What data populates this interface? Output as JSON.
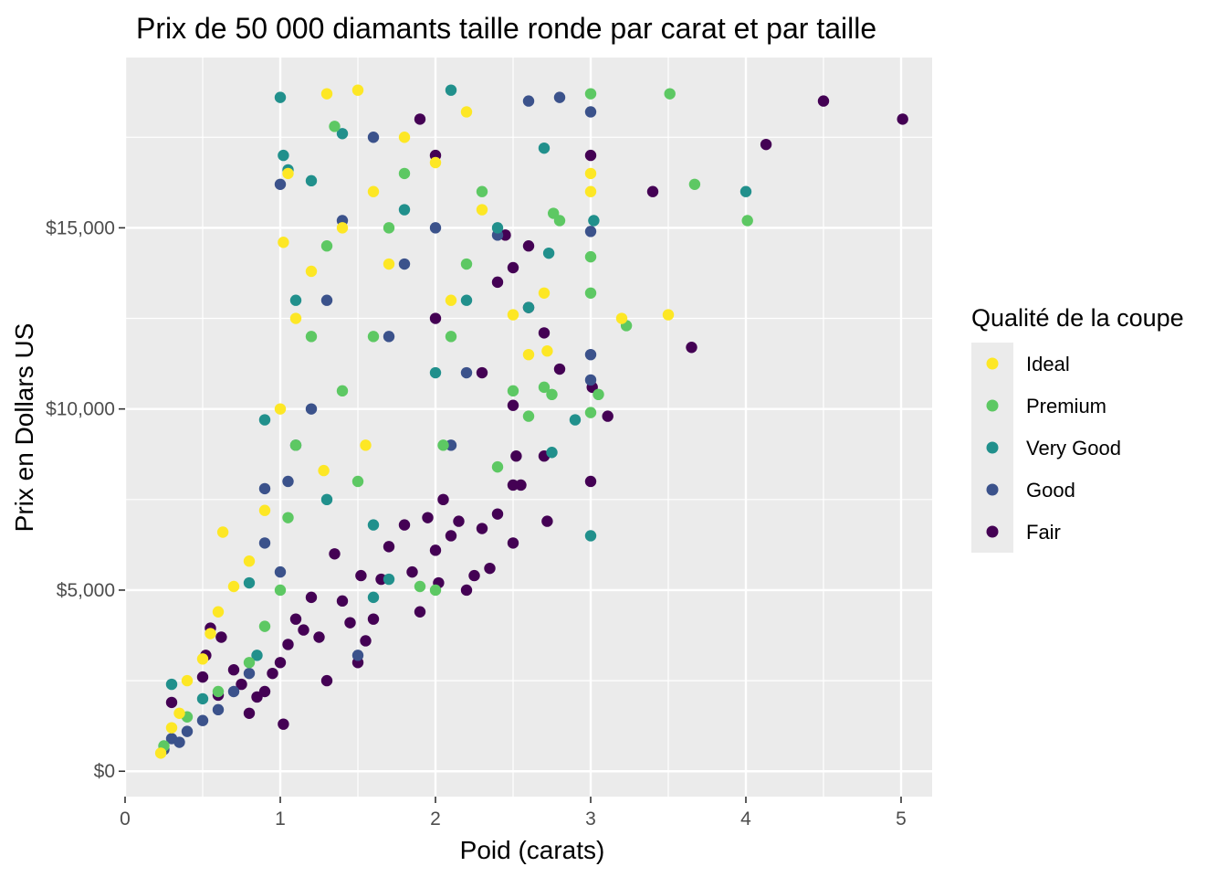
{
  "chart_data": {
    "type": "scatter",
    "title": "Prix de 50 000 diamants taille ronde par carat et par taille",
    "xlabel": "Poid (carats)",
    "ylabel": "Prix en Dollars US",
    "xlim": [
      0,
      5.2
    ],
    "ylim": [
      -700,
      19700
    ],
    "x_ticks": [
      0,
      1,
      2,
      3,
      4,
      5
    ],
    "x_tick_labels": [
      "0",
      "1",
      "2",
      "3",
      "4",
      "5"
    ],
    "y_ticks": [
      0,
      5000,
      10000,
      15000
    ],
    "y_tick_labels": [
      "$0",
      "$5,000",
      "$10,000",
      "$15,000"
    ],
    "grid": true,
    "legend": {
      "title": "Qualité de la coupe",
      "placement": "right",
      "entries": [
        "Ideal",
        "Premium",
        "Very Good",
        "Good",
        "Fair"
      ]
    },
    "colors": {
      "Ideal": "#FDE725",
      "Premium": "#5DC863",
      "Very Good": "#21908C",
      "Good": "#3B528B",
      "Fair": "#440154",
      "panel_background": "#EBEBEB",
      "grid_line": "#FFFFFF"
    },
    "series": [
      {
        "name": "Fair",
        "points": [
          [
            0.3,
            1900
          ],
          [
            0.5,
            2600
          ],
          [
            0.52,
            3200
          ],
          [
            0.55,
            3950
          ],
          [
            0.6,
            2100
          ],
          [
            0.62,
            3700
          ],
          [
            0.7,
            2800
          ],
          [
            0.75,
            2400
          ],
          [
            0.8,
            1600
          ],
          [
            0.85,
            2050
          ],
          [
            0.9,
            2200
          ],
          [
            0.95,
            2700
          ],
          [
            1.0,
            3000
          ],
          [
            1.02,
            1300
          ],
          [
            1.05,
            3500
          ],
          [
            1.1,
            4200
          ],
          [
            1.15,
            3900
          ],
          [
            1.2,
            4800
          ],
          [
            1.25,
            3700
          ],
          [
            1.3,
            2500
          ],
          [
            1.35,
            6000
          ],
          [
            1.4,
            4700
          ],
          [
            1.45,
            4100
          ],
          [
            1.5,
            3000
          ],
          [
            1.52,
            5400
          ],
          [
            1.55,
            3600
          ],
          [
            1.6,
            4200
          ],
          [
            1.65,
            5300
          ],
          [
            1.7,
            6200
          ],
          [
            1.8,
            6800
          ],
          [
            1.85,
            5500
          ],
          [
            1.9,
            4400
          ],
          [
            1.95,
            7000
          ],
          [
            2.0,
            6100
          ],
          [
            2.02,
            5200
          ],
          [
            2.05,
            7500
          ],
          [
            2.1,
            6500
          ],
          [
            2.15,
            6900
          ],
          [
            2.2,
            5000
          ],
          [
            2.25,
            5400
          ],
          [
            2.3,
            6700
          ],
          [
            2.35,
            5600
          ],
          [
            2.4,
            7100
          ],
          [
            2.5,
            6300
          ],
          [
            2.52,
            8700
          ],
          [
            2.55,
            7900
          ],
          [
            2.6,
            14500
          ],
          [
            2.7,
            8700
          ],
          [
            2.72,
            6900
          ],
          [
            1.9,
            18000
          ],
          [
            2.0,
            12500
          ],
          [
            2.3,
            11000
          ],
          [
            2.4,
            13500
          ],
          [
            2.45,
            14800
          ],
          [
            2.5,
            13900
          ],
          [
            2.6,
            12800
          ],
          [
            2.7,
            12100
          ],
          [
            2.8,
            11100
          ],
          [
            3.0,
            17000
          ],
          [
            3.0,
            8000
          ],
          [
            3.01,
            10600
          ],
          [
            3.11,
            9800
          ],
          [
            3.4,
            16000
          ],
          [
            3.65,
            11700
          ],
          [
            4.13,
            17300
          ],
          [
            4.5,
            18500
          ],
          [
            5.01,
            18000
          ],
          [
            2.0,
            17000
          ],
          [
            2.5,
            10100
          ],
          [
            2.5,
            7900
          ]
        ]
      },
      {
        "name": "Good",
        "points": [
          [
            0.25,
            600
          ],
          [
            0.3,
            900
          ],
          [
            0.35,
            800
          ],
          [
            0.4,
            1100
          ],
          [
            0.5,
            1400
          ],
          [
            0.6,
            1700
          ],
          [
            0.7,
            2200
          ],
          [
            0.8,
            2700
          ],
          [
            0.9,
            6300
          ],
          [
            0.9,
            7800
          ],
          [
            1.0,
            5500
          ],
          [
            1.0,
            16200
          ],
          [
            1.05,
            8000
          ],
          [
            1.1,
            9000
          ],
          [
            1.2,
            10000
          ],
          [
            1.3,
            13000
          ],
          [
            1.4,
            15200
          ],
          [
            1.5,
            3200
          ],
          [
            1.6,
            17500
          ],
          [
            1.7,
            12000
          ],
          [
            1.8,
            14000
          ],
          [
            2.0,
            15000
          ],
          [
            2.1,
            9000
          ],
          [
            2.2,
            11000
          ],
          [
            2.4,
            14800
          ],
          [
            2.6,
            18500
          ],
          [
            2.8,
            18600
          ],
          [
            3.0,
            18200
          ],
          [
            3.0,
            14900
          ],
          [
            3.0,
            11500
          ],
          [
            3.0,
            10800
          ]
        ]
      },
      {
        "name": "Very Good",
        "points": [
          [
            0.3,
            2400
          ],
          [
            0.5,
            2000
          ],
          [
            0.8,
            5200
          ],
          [
            0.85,
            3200
          ],
          [
            0.9,
            9700
          ],
          [
            1.0,
            18600
          ],
          [
            1.02,
            17000
          ],
          [
            1.05,
            16600
          ],
          [
            1.1,
            13000
          ],
          [
            1.2,
            16300
          ],
          [
            1.3,
            7500
          ],
          [
            1.4,
            17600
          ],
          [
            1.6,
            6800
          ],
          [
            1.7,
            5300
          ],
          [
            1.8,
            15500
          ],
          [
            2.0,
            11000
          ],
          [
            2.2,
            13000
          ],
          [
            2.4,
            15000
          ],
          [
            2.6,
            12800
          ],
          [
            2.7,
            17200
          ],
          [
            2.73,
            14300
          ],
          [
            2.75,
            8800
          ],
          [
            2.9,
            9700
          ],
          [
            3.0,
            6500
          ],
          [
            3.02,
            15200
          ],
          [
            4.0,
            16000
          ],
          [
            1.6,
            4800
          ],
          [
            2.1,
            18800
          ]
        ]
      },
      {
        "name": "Premium",
        "points": [
          [
            0.25,
            700
          ],
          [
            0.4,
            1500
          ],
          [
            0.6,
            2200
          ],
          [
            0.8,
            3000
          ],
          [
            0.9,
            4000
          ],
          [
            1.0,
            5000
          ],
          [
            1.05,
            7000
          ],
          [
            1.1,
            9000
          ],
          [
            1.2,
            12000
          ],
          [
            1.3,
            14500
          ],
          [
            1.35,
            17800
          ],
          [
            1.4,
            10500
          ],
          [
            1.5,
            8000
          ],
          [
            1.6,
            12000
          ],
          [
            1.7,
            15000
          ],
          [
            1.8,
            16500
          ],
          [
            1.9,
            5100
          ],
          [
            2.0,
            5000
          ],
          [
            2.05,
            9000
          ],
          [
            2.1,
            12000
          ],
          [
            2.2,
            14000
          ],
          [
            2.3,
            16000
          ],
          [
            2.4,
            8400
          ],
          [
            2.5,
            10500
          ],
          [
            2.6,
            9800
          ],
          [
            2.7,
            10600
          ],
          [
            2.8,
            15200
          ],
          [
            2.75,
            10400
          ],
          [
            3.0,
            18700
          ],
          [
            3.0,
            14200
          ],
          [
            3.0,
            13200
          ],
          [
            3.0,
            9900
          ],
          [
            3.05,
            10400
          ],
          [
            3.23,
            12300
          ],
          [
            3.51,
            18700
          ],
          [
            3.67,
            16200
          ],
          [
            4.01,
            15200
          ],
          [
            2.76,
            15400
          ]
        ]
      },
      {
        "name": "Ideal",
        "points": [
          [
            0.23,
            500
          ],
          [
            0.3,
            1200
          ],
          [
            0.35,
            1600
          ],
          [
            0.4,
            2500
          ],
          [
            0.5,
            3100
          ],
          [
            0.55,
            3800
          ],
          [
            0.6,
            4400
          ],
          [
            0.63,
            6600
          ],
          [
            0.7,
            5100
          ],
          [
            0.8,
            5800
          ],
          [
            0.9,
            7200
          ],
          [
            1.0,
            10000
          ],
          [
            1.02,
            14600
          ],
          [
            1.05,
            16500
          ],
          [
            1.1,
            12500
          ],
          [
            1.2,
            13800
          ],
          [
            1.3,
            18700
          ],
          [
            1.4,
            15000
          ],
          [
            1.5,
            18800
          ],
          [
            1.55,
            9000
          ],
          [
            1.6,
            16000
          ],
          [
            1.7,
            14000
          ],
          [
            1.8,
            17500
          ],
          [
            2.0,
            16800
          ],
          [
            2.1,
            13000
          ],
          [
            2.2,
            18200
          ],
          [
            2.3,
            15500
          ],
          [
            2.5,
            12600
          ],
          [
            2.6,
            11500
          ],
          [
            2.7,
            13200
          ],
          [
            2.72,
            11600
          ],
          [
            3.0,
            16500
          ],
          [
            3.0,
            16000
          ],
          [
            3.2,
            12500
          ],
          [
            3.5,
            12600
          ],
          [
            1.28,
            8300
          ]
        ]
      }
    ]
  }
}
